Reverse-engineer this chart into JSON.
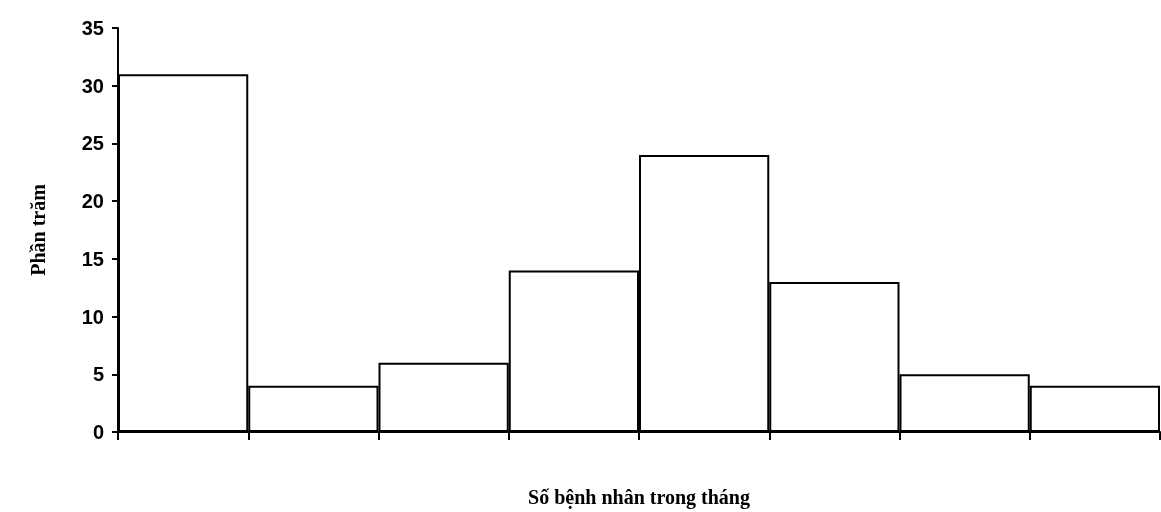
{
  "chart_data": {
    "type": "bar",
    "xlabel": "Số bệnh nhân trong tháng",
    "ylabel": "Phần trăm",
    "categories": [
      null,
      null,
      null,
      null,
      null,
      null,
      null,
      null
    ],
    "values": [
      31,
      4,
      6,
      14,
      24,
      13,
      5,
      4
    ],
    "color": "#ffffff",
    "ylim": [
      0,
      35
    ],
    "yticks": [
      0,
      5,
      10,
      15,
      20,
      25,
      30,
      35
    ],
    "grid": false
  }
}
